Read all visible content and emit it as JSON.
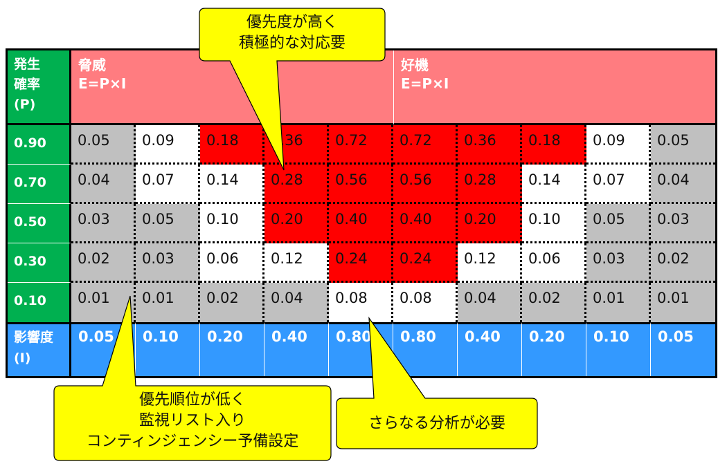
{
  "matrix": {
    "probability_label": "発生\n確率\n(P)",
    "threat_label": "脅威\nE=P×I",
    "opportunity_label": "好機\nE=P×I",
    "impact_label": "影響度\n(I)",
    "probabilities": [
      "0.90",
      "0.70",
      "0.50",
      "0.30",
      "0.10"
    ],
    "impacts": [
      "0.05",
      "0.10",
      "0.20",
      "0.40",
      "0.80",
      "0.80",
      "0.40",
      "0.20",
      "0.10",
      "0.05"
    ],
    "rows": [
      [
        "0.05",
        "0.09",
        "0.18",
        "0.36",
        "0.72",
        "0.72",
        "0.36",
        "0.18",
        "0.09",
        "0.05"
      ],
      [
        "0.04",
        "0.07",
        "0.14",
        "0.28",
        "0.56",
        "0.56",
        "0.28",
        "0.14",
        "0.07",
        "0.04"
      ],
      [
        "0.03",
        "0.05",
        "0.10",
        "0.20",
        "0.40",
        "0.40",
        "0.20",
        "0.10",
        "0.05",
        "0.03"
      ],
      [
        "0.02",
        "0.03",
        "0.06",
        "0.12",
        "0.24",
        "0.24",
        "0.12",
        "0.06",
        "0.03",
        "0.02"
      ],
      [
        "0.01",
        "0.01",
        "0.02",
        "0.04",
        "0.08",
        "0.08",
        "0.04",
        "0.02",
        "0.01",
        "0.01"
      ]
    ],
    "cell_colors": [
      [
        "g",
        "w",
        "r",
        "r",
        "r",
        "r",
        "r",
        "r",
        "w",
        "g"
      ],
      [
        "g",
        "w",
        "w",
        "r",
        "r",
        "r",
        "r",
        "w",
        "w",
        "g"
      ],
      [
        "g",
        "g",
        "w",
        "r",
        "r",
        "r",
        "r",
        "w",
        "g",
        "g"
      ],
      [
        "g",
        "g",
        "w",
        "w",
        "r",
        "r",
        "w",
        "w",
        "g",
        "g"
      ],
      [
        "g",
        "g",
        "g",
        "g",
        "w",
        "w",
        "g",
        "g",
        "g",
        "g"
      ]
    ],
    "colors": {
      "red": "#ff0000",
      "white": "#ffffff",
      "gray": "#c0c0c0",
      "green": "#00b050",
      "blue": "#3399ff",
      "pink": "#ff7c80",
      "callout": "#ffff00"
    }
  },
  "callouts": {
    "high_priority": "優先度が高く\n積極的な対応要",
    "low_priority": "優先順位が低く\n監視リスト入り\nコンティンジェンシー予備設定",
    "further_analysis": "さらなる分析が必要"
  }
}
